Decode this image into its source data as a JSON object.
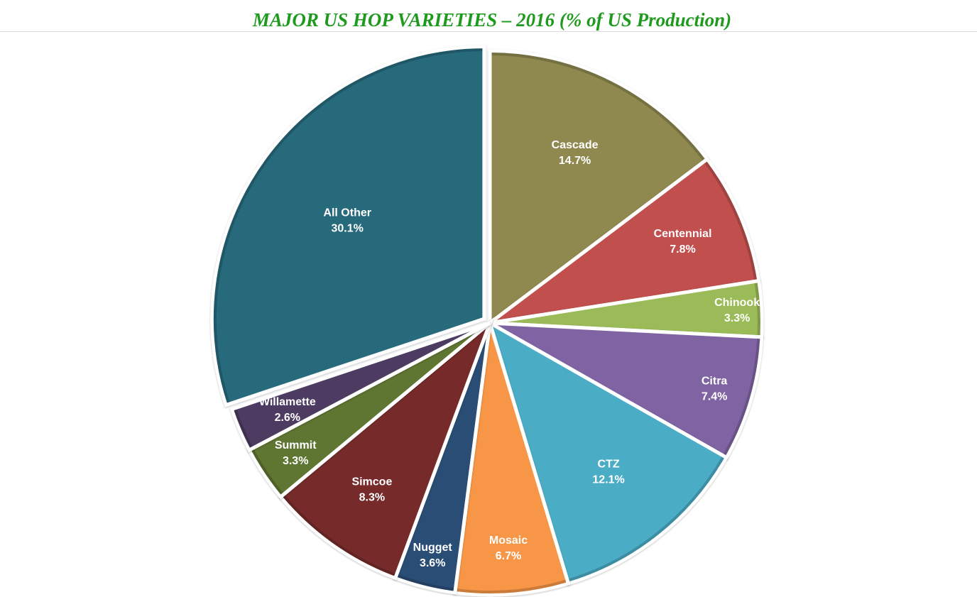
{
  "chart_data": {
    "type": "pie",
    "title": "MAJOR US HOP VARIETIES – 2016 (% of US Production)",
    "title_color": "#1e9a1e",
    "label_color": "#ffffff",
    "start_angle_deg": 0,
    "direction": "clockwise",
    "legend": "none",
    "slices": [
      {
        "name": "Cascade",
        "value": 14.7,
        "value_label": "14.7%",
        "color": "#8f884f"
      },
      {
        "name": "Centennial",
        "value": 7.8,
        "value_label": "7.8%",
        "color": "#c0504d"
      },
      {
        "name": "Chinook",
        "value": 3.3,
        "value_label": "3.3%",
        "color": "#9bbb59"
      },
      {
        "name": "Citra",
        "value": 7.4,
        "value_label": "7.4%",
        "color": "#8064a2"
      },
      {
        "name": "CTZ",
        "value": 12.1,
        "value_label": "12.1%",
        "color": "#4bacc6"
      },
      {
        "name": "Mosaic",
        "value": 6.7,
        "value_label": "6.7%",
        "color": "#f79646"
      },
      {
        "name": "Nugget",
        "value": 3.6,
        "value_label": "3.6%",
        "color": "#2c4d75"
      },
      {
        "name": "Simcoe",
        "value": 8.3,
        "value_label": "8.3%",
        "color": "#772c2a"
      },
      {
        "name": "Summit",
        "value": 3.3,
        "value_label": "3.3%",
        "color": "#5f7530"
      },
      {
        "name": "Willamette",
        "value": 2.6,
        "value_label": "2.6%",
        "color": "#4d3b62"
      },
      {
        "name": "All Other",
        "value": 30.1,
        "value_label": "30.1%",
        "color": "#276a7c",
        "exploded": true
      }
    ]
  }
}
